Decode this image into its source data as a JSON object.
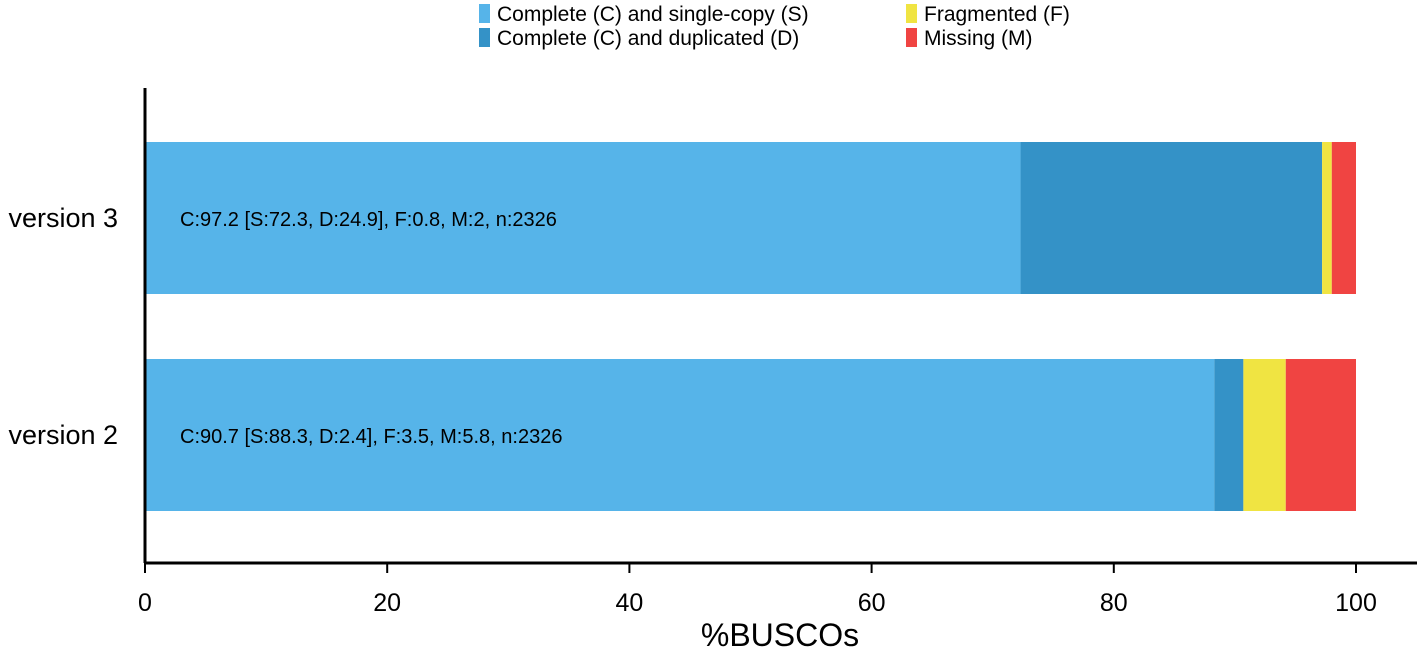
{
  "chart_data": {
    "type": "bar",
    "orientation": "horizontal",
    "stacked": true,
    "categories": [
      "version 3",
      "version 2"
    ],
    "series": [
      {
        "name": "Complete (C) and single-copy (S)",
        "color": "#56B4E9",
        "values": [
          72.3,
          88.3
        ]
      },
      {
        "name": "Complete (C) and duplicated (D)",
        "color": "#3492C7",
        "values": [
          24.9,
          2.4
        ]
      },
      {
        "name": "Fragmented (F)",
        "color": "#F0E442",
        "values": [
          0.8,
          3.5
        ]
      },
      {
        "name": "Missing (M)",
        "color": "#F04442",
        "values": [
          2.0,
          5.8
        ]
      }
    ],
    "bar_labels": [
      "C:97.2 [S:72.3, D:24.9], F:0.8, M:2, n:2326",
      "C:90.7 [S:88.3, D:2.4], F:3.5, M:5.8, n:2326"
    ],
    "xlabel": "%BUSCOs",
    "ylabel": "",
    "xlim": [
      0,
      100
    ],
    "xticks": [
      0,
      20,
      40,
      60,
      80,
      100
    ],
    "grid": false,
    "legend_position": "top"
  }
}
